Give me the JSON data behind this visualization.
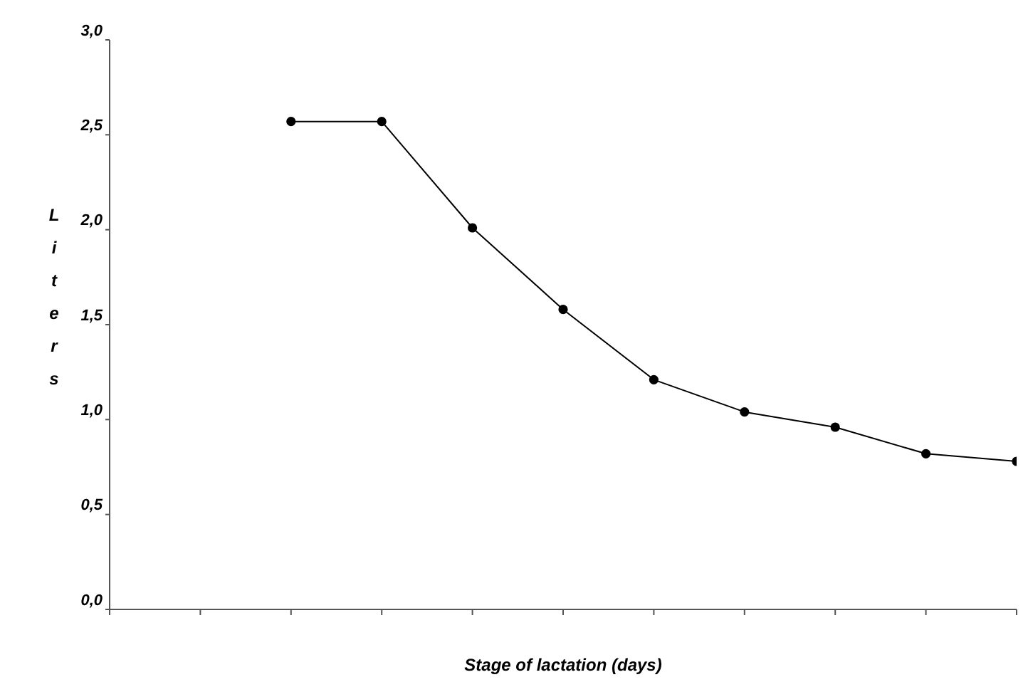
{
  "chart_data": {
    "type": "line",
    "xlabel": "Stage of lactation (days)",
    "ylabel": "Liters",
    "categories": [
      null,
      null,
      null,
      null,
      null,
      null,
      null,
      null,
      null,
      null,
      null
    ],
    "series": [
      {
        "color": "#000000",
        "values": [
          null,
          null,
          2.57,
          2.57,
          2.01,
          1.58,
          1.21,
          1.04,
          0.96,
          0.82,
          0.78
        ]
      }
    ],
    "ylim": [
      0,
      3
    ],
    "yticks": [
      {
        "value": 0,
        "label": "0,0"
      },
      {
        "value": 0.5,
        "label": "0,5"
      },
      {
        "value": 1,
        "label": "1,0"
      },
      {
        "value": 1.5,
        "label": "1,5"
      },
      {
        "value": 2,
        "label": "2,0"
      },
      {
        "value": 2.5,
        "label": "2,5"
      },
      {
        "value": 3,
        "label": "3,0"
      }
    ],
    "grid": false,
    "legend": false,
    "marker": "circle",
    "line_style": "solid"
  }
}
